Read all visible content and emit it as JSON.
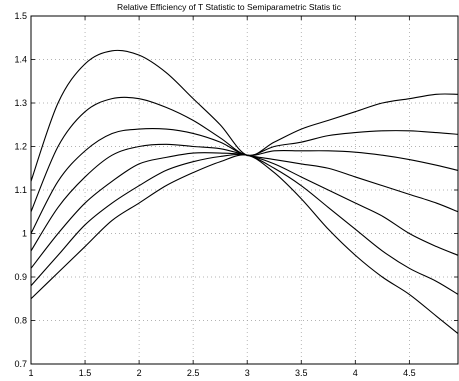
{
  "chart_data": {
    "type": "line",
    "title": "Relative Efficiency of T Statistic to Semiparametric Statis tic",
    "xlabel": "",
    "ylabel": "",
    "xlim": [
      1,
      4.95
    ],
    "ylim": [
      0.7,
      1.5
    ],
    "grid": true,
    "x_ticks": [
      1,
      1.5,
      2,
      2.5,
      3,
      3.5,
      4,
      4.5
    ],
    "x_tick_labels": [
      "1",
      "1.5",
      "2",
      "2.5",
      "3",
      "3.5",
      "4",
      "4.5"
    ],
    "y_ticks": [
      0.7,
      0.8,
      0.9,
      1.0,
      1.1,
      1.2,
      1.3,
      1.4,
      1.5
    ],
    "y_tick_labels": [
      "0.7",
      "0.8",
      "0.9",
      "1",
      "1.1",
      "1.2",
      "1.3",
      "1.4",
      "1.5"
    ],
    "x": [
      1,
      1.25,
      1.5,
      1.75,
      2,
      2.25,
      2.5,
      2.75,
      3,
      3.25,
      3.5,
      3.75,
      4,
      4.25,
      4.5,
      4.75,
      4.95
    ],
    "series": [
      {
        "values": [
          1.12,
          1.3,
          1.39,
          1.42,
          1.41,
          1.37,
          1.31,
          1.25,
          1.18,
          1.21,
          1.24,
          1.26,
          1.28,
          1.3,
          1.31,
          1.32,
          1.32
        ]
      },
      {
        "values": [
          1.05,
          1.2,
          1.28,
          1.31,
          1.31,
          1.29,
          1.26,
          1.22,
          1.18,
          1.2,
          1.21,
          1.225,
          1.232,
          1.236,
          1.236,
          1.232,
          1.228
        ]
      },
      {
        "values": [
          1.0,
          1.12,
          1.19,
          1.23,
          1.24,
          1.24,
          1.23,
          1.21,
          1.18,
          1.19,
          1.19,
          1.19,
          1.187,
          1.18,
          1.17,
          1.157,
          1.145
        ]
      },
      {
        "values": [
          0.96,
          1.06,
          1.13,
          1.18,
          1.2,
          1.205,
          1.2,
          1.195,
          1.18,
          1.17,
          1.16,
          1.15,
          1.13,
          1.11,
          1.09,
          1.07,
          1.05
        ]
      },
      {
        "values": [
          0.92,
          1.0,
          1.07,
          1.12,
          1.16,
          1.175,
          1.185,
          1.185,
          1.18,
          1.16,
          1.13,
          1.1,
          1.07,
          1.04,
          1.0,
          0.97,
          0.95
        ]
      },
      {
        "values": [
          0.88,
          0.95,
          1.02,
          1.07,
          1.11,
          1.145,
          1.165,
          1.177,
          1.18,
          1.15,
          1.11,
          1.06,
          1.01,
          0.96,
          0.92,
          0.89,
          0.86
        ]
      },
      {
        "values": [
          0.85,
          0.91,
          0.97,
          1.03,
          1.07,
          1.11,
          1.14,
          1.165,
          1.18,
          1.14,
          1.08,
          1.01,
          0.95,
          0.9,
          0.86,
          0.81,
          0.77
        ]
      }
    ]
  }
}
